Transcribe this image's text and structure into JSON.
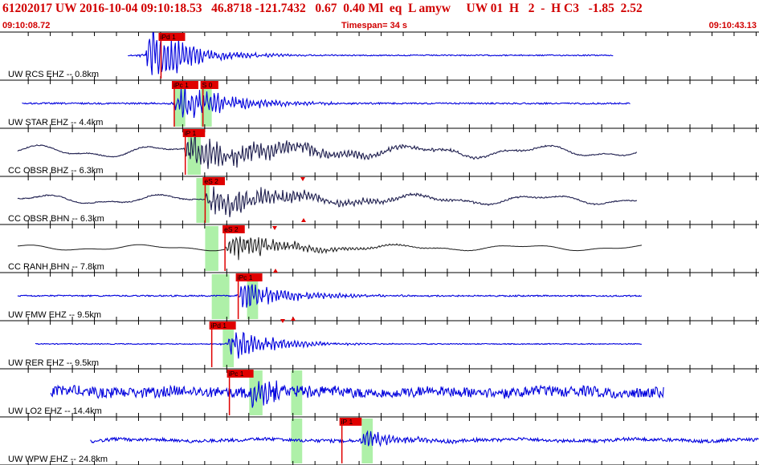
{
  "header": {
    "title": "61202017 UW 2016-10-04 09:10:18.53   46.8718 -121.7432   0.67  0.40 Ml  eq  L amyw     UW 01  H   2  -  H C3   -1.85  2.52",
    "time_start": "09:10:08.72",
    "timespan": "Timespan=  34 s",
    "time_end": "09:10:43.13"
  },
  "colors": {
    "title": "#d10000",
    "trace_blue": "#0000dd",
    "trace_dark": "#202050",
    "trace_black": "#1a1a1a",
    "pick": "#e00000",
    "window": "#aef0a8",
    "axis": "#000000"
  },
  "chart_data": {
    "type": "line",
    "title": "",
    "xlabel": "",
    "ylabel": "",
    "xlim": [
      0,
      34.41
    ],
    "traces": [
      {
        "label": "UW RCS EHZ -- 0.8km",
        "color": "blue",
        "start": 5.8,
        "end": 27.8,
        "amp": 30,
        "noise": 0.03,
        "lf": 0.0,
        "onset": 6.6,
        "decay": 1.8,
        "windows": [],
        "picks": [
          {
            "label": "iPd 1",
            "t": 7.3,
            "x_off": -1
          }
        ]
      },
      {
        "label": "UW STAR EHZ -- 4.4km",
        "color": "blue",
        "start": 1.0,
        "end": 28.6,
        "amp": 20,
        "noise": 0.06,
        "lf": 0.0,
        "onset": 7.9,
        "decay": 2.2,
        "windows": [
          [
            7.9,
            8.4
          ],
          [
            9.1,
            9.6
          ]
        ],
        "picks": [
          {
            "label": "iPc 1",
            "t": 7.9,
            "x_off": 0
          },
          {
            "label": "S 0",
            "t": 9.2,
            "x_off": 0
          }
        ]
      },
      {
        "label": "CC OBSR BHZ -- 6.3km",
        "color": "dark",
        "start": 0.8,
        "end": 28.9,
        "amp": 18,
        "noise": 0.04,
        "lf": 0.55,
        "onset": 8.3,
        "decay": 4.5,
        "windows": [
          [
            8.5,
            9.1
          ]
        ],
        "picks": [
          {
            "label": "iP 1",
            "t": 8.4,
            "x_off": 0
          }
        ]
      },
      {
        "label": "CC OBSR BHN -- 6.3km",
        "color": "dark",
        "start": 0.8,
        "end": 28.9,
        "amp": 16,
        "noise": 0.05,
        "lf": 0.5,
        "onset": 9.3,
        "decay": 4.0,
        "windows": [
          [
            8.9,
            9.5
          ]
        ],
        "picks": [
          {
            "label": "eS 2",
            "t": 9.3,
            "x_off": 0
          }
        ]
      },
      {
        "label": "CC RANH BHN -- 7.8km",
        "color": "black",
        "start": 0.8,
        "end": 29.1,
        "amp": 14,
        "noise": 0.0,
        "lf": 0.35,
        "onset": 10.2,
        "decay": 2.5,
        "windows": [
          [
            9.3,
            9.9
          ]
        ],
        "picks": [
          {
            "label": "eS 2",
            "t": 10.2,
            "x_off": 0
          }
        ]
      },
      {
        "label": "UW FMW EHZ -- 9.5km",
        "color": "blue",
        "start": 0.8,
        "end": 29.1,
        "amp": 14,
        "noise": 0.08,
        "lf": 0.0,
        "onset": 10.8,
        "decay": 2.2,
        "windows": [
          [
            9.6,
            10.4
          ],
          [
            11.2,
            11.7
          ]
        ],
        "picks": [
          {
            "label": "iPc 1",
            "t": 10.8,
            "x_off": 0
          }
        ]
      },
      {
        "label": "UW RER EHZ -- 9.5km",
        "color": "blue",
        "start": 1.6,
        "end": 29.1,
        "amp": 18,
        "noise": 0.04,
        "lf": 0.0,
        "onset": 10.3,
        "decay": 1.7,
        "windows": [
          [
            10.1,
            10.6
          ]
        ],
        "picks": [
          {
            "label": "iPd 1",
            "t": 9.6,
            "x_off": 0
          }
        ]
      },
      {
        "label": "UW LO2 EHZ -- 14.4km",
        "color": "blue",
        "start": 2.3,
        "end": 30.1,
        "amp": 18,
        "noise": 0.45,
        "lf": 0.15,
        "onset": 11.3,
        "decay": 1.2,
        "windows": [
          [
            11.3,
            11.9
          ],
          [
            13.2,
            13.7
          ]
        ],
        "picks": [
          {
            "label": "iPc 1",
            "t": 10.4,
            "x_off": 0
          }
        ]
      },
      {
        "label": "UW WPW EHZ -- 24.8km",
        "color": "blue",
        "start": 4.1,
        "end": 34.4,
        "amp": 10,
        "noise": 0.25,
        "lf": 0.2,
        "onset": 16.3,
        "decay": 1.5,
        "windows": [
          [
            13.2,
            13.7
          ],
          [
            16.4,
            16.9
          ]
        ],
        "picks": [
          {
            "label": "iP 1",
            "t": 15.5,
            "x_off": 0
          }
        ]
      }
    ]
  }
}
